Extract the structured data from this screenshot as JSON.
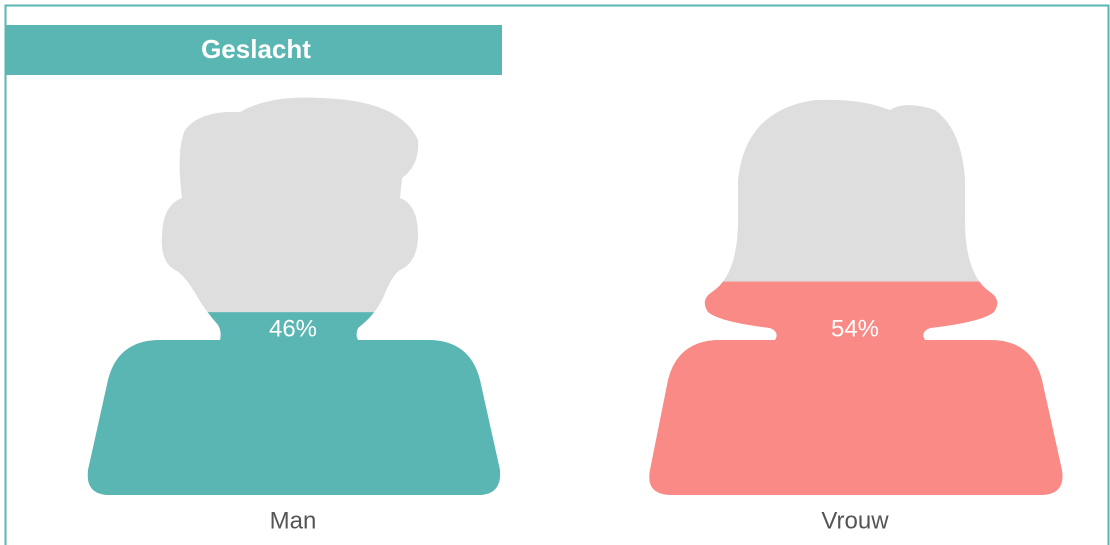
{
  "chart_data": {
    "type": "pictogram",
    "title": "Geslacht",
    "categories": [
      "Man",
      "Vrouw"
    ],
    "values": [
      46,
      54
    ],
    "value_labels": [
      "46%",
      "54%"
    ],
    "colors": [
      "#5ab6b2",
      "#f98a86"
    ]
  }
}
